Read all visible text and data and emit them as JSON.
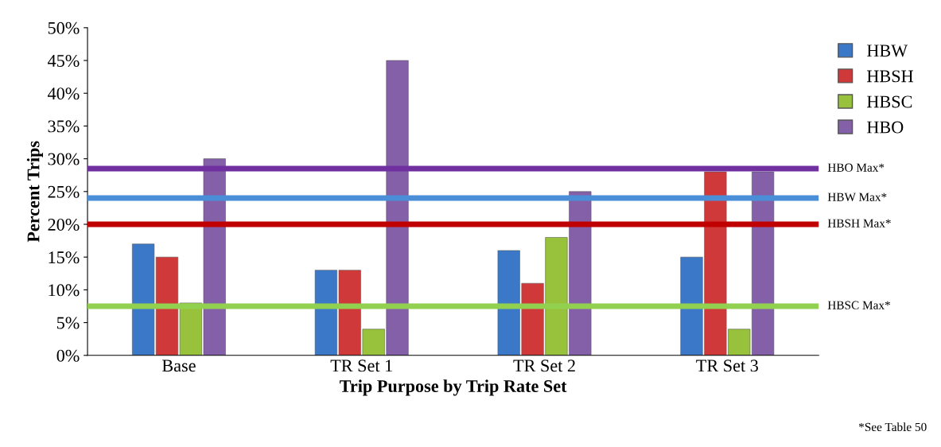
{
  "chart_data": {
    "type": "bar",
    "xlabel": "Trip Purpose by Trip Rate Set",
    "ylabel": "Percent Trips",
    "categories": [
      "Base",
      "TR Set 1",
      "TR Set 2",
      "TR Set 3"
    ],
    "series": [
      {
        "name": "HBW",
        "color": "#3b78c8",
        "values": [
          17,
          13,
          16,
          15
        ]
      },
      {
        "name": "HBSH",
        "color": "#d0393a",
        "values": [
          15,
          13,
          11,
          28
        ]
      },
      {
        "name": "HBSC",
        "color": "#98c23c",
        "values": [
          8,
          4,
          18,
          4
        ]
      },
      {
        "name": "HBO",
        "color": "#8460a8",
        "values": [
          30,
          45,
          25,
          28
        ]
      }
    ],
    "ylim": [
      0,
      50
    ],
    "yticks": [
      {
        "value": 0,
        "label": "0%"
      },
      {
        "value": 5,
        "label": "5%"
      },
      {
        "value": 10,
        "label": "10%"
      },
      {
        "value": 15,
        "label": "15%"
      },
      {
        "value": 20,
        "label": "20%"
      },
      {
        "value": 25,
        "label": "25%"
      },
      {
        "value": 30,
        "label": "30%"
      },
      {
        "value": 35,
        "label": "35%"
      },
      {
        "value": 40,
        "label": "40%"
      },
      {
        "value": 45,
        "label": "45%"
      },
      {
        "value": 50,
        "label": "50%"
      }
    ],
    "ref_lines": [
      {
        "axis": "y",
        "value": 28.5,
        "label": "HBO Max*",
        "color": "#7030a0"
      },
      {
        "axis": "y",
        "value": 24,
        "label": "HBW Max*",
        "color": "#4a8ed8"
      },
      {
        "axis": "y",
        "value": 20,
        "label": "HBSH Max*",
        "color": "#c00000"
      },
      {
        "axis": "y",
        "value": 7.5,
        "label": "HBSC Max*",
        "color": "#92d050"
      }
    ],
    "annotations": [
      "*See Table 50"
    ],
    "grid": false,
    "legend": "top right"
  }
}
